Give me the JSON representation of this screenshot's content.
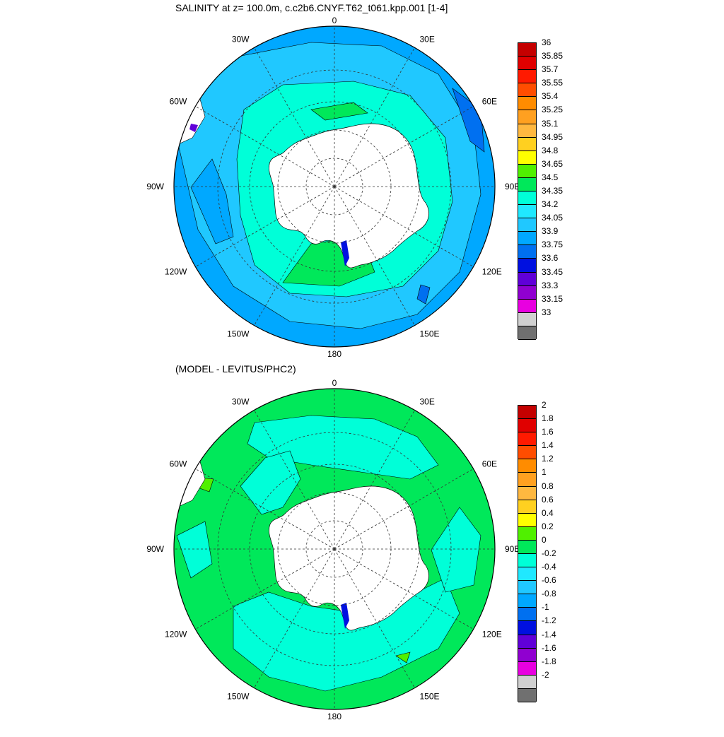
{
  "panels": [
    {
      "title": "SALINITY at z= 100.0m, c.c2b6.CNYF.T62_t061.kpp.001 [1-4]",
      "fill_color": "#1ec8ff",
      "colorbar": {
        "labels": [
          "36",
          "35.85",
          "35.7",
          "35.55",
          "35.4",
          "35.25",
          "35.1",
          "34.95",
          "34.8",
          "34.65",
          "34.5",
          "34.35",
          "34.2",
          "34.05",
          "33.9",
          "33.75",
          "33.6",
          "33.45",
          "33.3",
          "33.15",
          "33"
        ],
        "colors": [
          "#c40000",
          "#e00000",
          "#ff1a00",
          "#ff4d00",
          "#ff8c00",
          "#ffa020",
          "#ffb840",
          "#ffd020",
          "#ffff00",
          "#50f000",
          "#00e85a",
          "#00ffd8",
          "#20e8ff",
          "#20c8ff",
          "#00a8ff",
          "#0070f0",
          "#0010e0",
          "#6000d8",
          "#9000d0",
          "#e800e0",
          "#d0d0d0",
          "#707070"
        ]
      }
    },
    {
      "title": "(MODEL - LEVITUS/PHC2)",
      "fill_color": "#00ee7a",
      "colorbar": {
        "labels": [
          "2",
          "1.8",
          "1.6",
          "1.4",
          "1.2",
          "1",
          "0.8",
          "0.6",
          "0.4",
          "0.2",
          "0",
          "-0.2",
          "-0.4",
          "-0.6",
          "-0.8",
          "-1",
          "-1.2",
          "-1.4",
          "-1.6",
          "-1.8",
          "-2"
        ],
        "colors": [
          "#c40000",
          "#e00000",
          "#ff1a00",
          "#ff4d00",
          "#ff8c00",
          "#ffa020",
          "#ffb840",
          "#ffd020",
          "#ffff00",
          "#50f000",
          "#00e85a",
          "#00ffd8",
          "#20e8ff",
          "#20c8ff",
          "#00a8ff",
          "#0070f0",
          "#0010e0",
          "#6000d8",
          "#9000d0",
          "#e800e0",
          "#d0d0d0",
          "#707070"
        ]
      }
    }
  ],
  "map_labels": [
    "0",
    "30E",
    "60E",
    "90E",
    "120E",
    "150E",
    "180",
    "150W",
    "120W",
    "90W",
    "60W",
    "30W"
  ],
  "palette": {
    "land": "#ffffff",
    "top_open_ocean": "#00a8ff",
    "top_inner": "#20c8ff",
    "top_coastal": "#00ffd8",
    "top_shelf": "#00e85a",
    "bottom_main": "#00e85a",
    "bottom_inner": "#00ffd8",
    "bottom_warm": "#50f000",
    "deep_blue": "#0010e0"
  }
}
